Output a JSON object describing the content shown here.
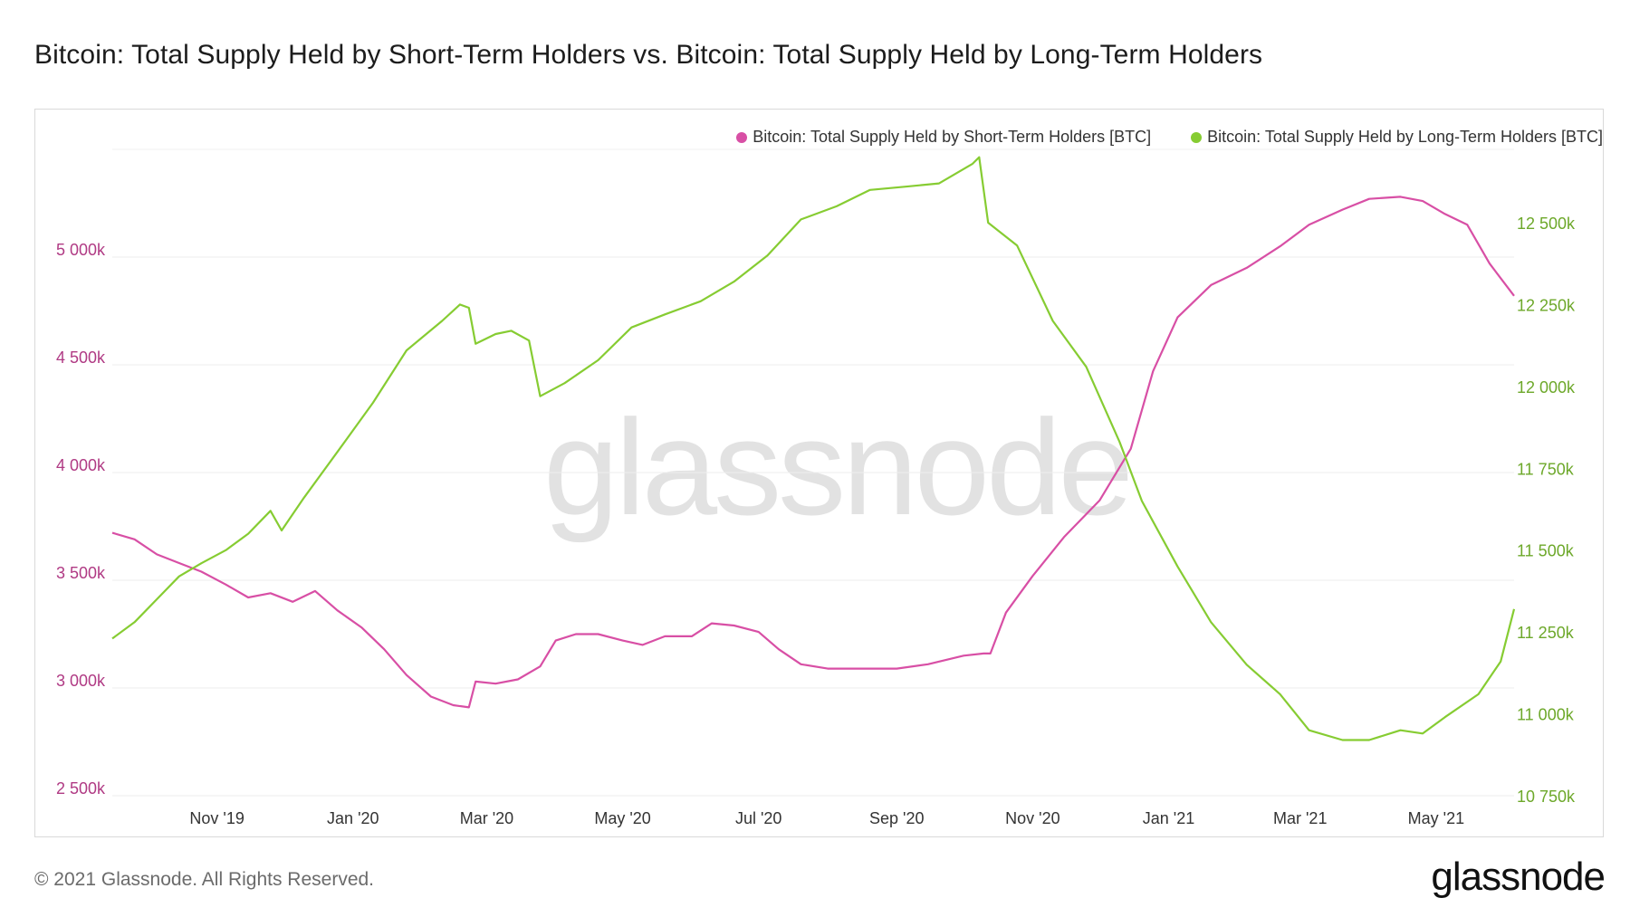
{
  "title": "Bitcoin: Total Supply Held by Short-Term Holders vs. Bitcoin: Total Supply Held by Long-Term Holders",
  "watermark": "glassnode",
  "footer": "© 2021 Glassnode. All Rights Reserved.",
  "brand": "glassnode",
  "colors": {
    "sth": "#d84fa5",
    "lth": "#86cc32",
    "sth_axis": "#b03a84",
    "lth_axis": "#6da82a"
  },
  "chart_data": {
    "type": "line",
    "title": "Bitcoin: Total Supply Held by Short-Term Holders vs. Bitcoin: Total Supply Held by Long-Term Holders",
    "x_domain": [
      "2019-09-15",
      "2021-06-05"
    ],
    "x_ticks": [
      {
        "label": "Nov '19",
        "date": "2019-11-01"
      },
      {
        "label": "Jan '20",
        "date": "2020-01-01"
      },
      {
        "label": "Mar '20",
        "date": "2020-03-01"
      },
      {
        "label": "May '20",
        "date": "2020-05-01"
      },
      {
        "label": "Jul '20",
        "date": "2020-07-01"
      },
      {
        "label": "Sep '20",
        "date": "2020-09-01"
      },
      {
        "label": "Nov '20",
        "date": "2020-11-01"
      },
      {
        "label": "Jan '21",
        "date": "2021-01-01"
      },
      {
        "label": "Mar '21",
        "date": "2021-03-01"
      },
      {
        "label": "May '21",
        "date": "2021-05-01"
      }
    ],
    "y_left": {
      "label": "",
      "range": [
        2500000,
        5500000
      ],
      "ticks": [
        {
          "v": 2500000,
          "label": "2 500k"
        },
        {
          "v": 3000000,
          "label": "3 000k"
        },
        {
          "v": 3500000,
          "label": "3 500k"
        },
        {
          "v": 4000000,
          "label": "4 000k"
        },
        {
          "v": 4500000,
          "label": "4 500k"
        },
        {
          "v": 5000000,
          "label": "5 000k"
        }
      ]
    },
    "y_right": {
      "label": "",
      "range": [
        10750000,
        12780000
      ],
      "ticks": [
        {
          "v": 10750000,
          "label": "10 750k"
        },
        {
          "v": 11000000,
          "label": "11 000k"
        },
        {
          "v": 11250000,
          "label": "11 250k"
        },
        {
          "v": 11500000,
          "label": "11 500k"
        },
        {
          "v": 11750000,
          "label": "11 750k"
        },
        {
          "v": 12000000,
          "label": "12 000k"
        },
        {
          "v": 12250000,
          "label": "12 250k"
        },
        {
          "v": 12500000,
          "label": "12 500k"
        }
      ]
    },
    "legend_position": "top-right",
    "series": [
      {
        "name": "Bitcoin: Total Supply Held by Short-Term Holders [BTC]",
        "axis": "left",
        "points": [
          [
            "2019-09-15",
            3720000
          ],
          [
            "2019-09-25",
            3690000
          ],
          [
            "2019-10-05",
            3620000
          ],
          [
            "2019-10-15",
            3580000
          ],
          [
            "2019-10-25",
            3540000
          ],
          [
            "2019-11-05",
            3480000
          ],
          [
            "2019-11-15",
            3420000
          ],
          [
            "2019-11-25",
            3440000
          ],
          [
            "2019-12-05",
            3400000
          ],
          [
            "2019-12-15",
            3450000
          ],
          [
            "2019-12-25",
            3360000
          ],
          [
            "2020-01-05",
            3280000
          ],
          [
            "2020-01-15",
            3180000
          ],
          [
            "2020-01-25",
            3060000
          ],
          [
            "2020-02-05",
            2960000
          ],
          [
            "2020-02-15",
            2920000
          ],
          [
            "2020-02-22",
            2910000
          ],
          [
            "2020-02-25",
            3030000
          ],
          [
            "2020-03-05",
            3020000
          ],
          [
            "2020-03-15",
            3040000
          ],
          [
            "2020-03-25",
            3100000
          ],
          [
            "2020-04-01",
            3220000
          ],
          [
            "2020-04-10",
            3250000
          ],
          [
            "2020-04-20",
            3250000
          ],
          [
            "2020-05-01",
            3220000
          ],
          [
            "2020-05-10",
            3200000
          ],
          [
            "2020-05-20",
            3240000
          ],
          [
            "2020-06-01",
            3240000
          ],
          [
            "2020-06-10",
            3300000
          ],
          [
            "2020-06-20",
            3290000
          ],
          [
            "2020-07-01",
            3260000
          ],
          [
            "2020-07-10",
            3180000
          ],
          [
            "2020-07-20",
            3110000
          ],
          [
            "2020-08-01",
            3090000
          ],
          [
            "2020-08-15",
            3090000
          ],
          [
            "2020-09-01",
            3090000
          ],
          [
            "2020-09-15",
            3110000
          ],
          [
            "2020-10-01",
            3150000
          ],
          [
            "2020-10-10",
            3160000
          ],
          [
            "2020-10-13",
            3160000
          ],
          [
            "2020-10-20",
            3350000
          ],
          [
            "2020-11-01",
            3520000
          ],
          [
            "2020-11-15",
            3700000
          ],
          [
            "2020-12-01",
            3870000
          ],
          [
            "2020-12-15",
            4110000
          ],
          [
            "2020-12-25",
            4470000
          ],
          [
            "2021-01-05",
            4720000
          ],
          [
            "2021-01-20",
            4870000
          ],
          [
            "2021-02-05",
            4950000
          ],
          [
            "2021-02-20",
            5050000
          ],
          [
            "2021-03-05",
            5150000
          ],
          [
            "2021-03-20",
            5220000
          ],
          [
            "2021-04-01",
            5270000
          ],
          [
            "2021-04-15",
            5280000
          ],
          [
            "2021-04-25",
            5260000
          ],
          [
            "2021-05-05",
            5200000
          ],
          [
            "2021-05-15",
            5150000
          ],
          [
            "2021-05-25",
            4970000
          ],
          [
            "2021-06-05",
            4820000
          ]
        ]
      },
      {
        "name": "Bitcoin: Total Supply Held by Long-Term Holders [BTC]",
        "axis": "right",
        "points": [
          [
            "2019-09-15",
            11230000
          ],
          [
            "2019-09-25",
            11280000
          ],
          [
            "2019-10-05",
            11350000
          ],
          [
            "2019-10-15",
            11420000
          ],
          [
            "2019-10-25",
            11460000
          ],
          [
            "2019-11-05",
            11500000
          ],
          [
            "2019-11-15",
            11550000
          ],
          [
            "2019-11-25",
            11620000
          ],
          [
            "2019-11-30",
            11560000
          ],
          [
            "2019-12-10",
            11660000
          ],
          [
            "2019-12-25",
            11800000
          ],
          [
            "2020-01-10",
            11950000
          ],
          [
            "2020-01-25",
            12110000
          ],
          [
            "2020-02-10",
            12200000
          ],
          [
            "2020-02-18",
            12250000
          ],
          [
            "2020-02-22",
            12240000
          ],
          [
            "2020-02-25",
            12130000
          ],
          [
            "2020-03-05",
            12160000
          ],
          [
            "2020-03-12",
            12170000
          ],
          [
            "2020-03-20",
            12140000
          ],
          [
            "2020-03-25",
            11970000
          ],
          [
            "2020-04-05",
            12010000
          ],
          [
            "2020-04-20",
            12080000
          ],
          [
            "2020-05-05",
            12180000
          ],
          [
            "2020-05-20",
            12220000
          ],
          [
            "2020-06-05",
            12260000
          ],
          [
            "2020-06-20",
            12320000
          ],
          [
            "2020-07-05",
            12400000
          ],
          [
            "2020-07-20",
            12510000
          ],
          [
            "2020-08-05",
            12550000
          ],
          [
            "2020-08-20",
            12600000
          ],
          [
            "2020-09-05",
            12610000
          ],
          [
            "2020-09-20",
            12620000
          ],
          [
            "2020-10-05",
            12680000
          ],
          [
            "2020-10-08",
            12700000
          ],
          [
            "2020-10-12",
            12500000
          ],
          [
            "2020-10-25",
            12430000
          ],
          [
            "2020-11-10",
            12200000
          ],
          [
            "2020-11-25",
            12060000
          ],
          [
            "2020-12-10",
            11830000
          ],
          [
            "2020-12-20",
            11650000
          ],
          [
            "2021-01-05",
            11450000
          ],
          [
            "2021-01-20",
            11280000
          ],
          [
            "2021-02-05",
            11150000
          ],
          [
            "2021-02-20",
            11060000
          ],
          [
            "2021-03-05",
            10950000
          ],
          [
            "2021-03-20",
            10920000
          ],
          [
            "2021-04-01",
            10920000
          ],
          [
            "2021-04-15",
            10950000
          ],
          [
            "2021-04-25",
            10940000
          ],
          [
            "2021-05-05",
            10990000
          ],
          [
            "2021-05-20",
            11060000
          ],
          [
            "2021-05-30",
            11160000
          ],
          [
            "2021-06-05",
            11320000
          ]
        ]
      }
    ]
  }
}
